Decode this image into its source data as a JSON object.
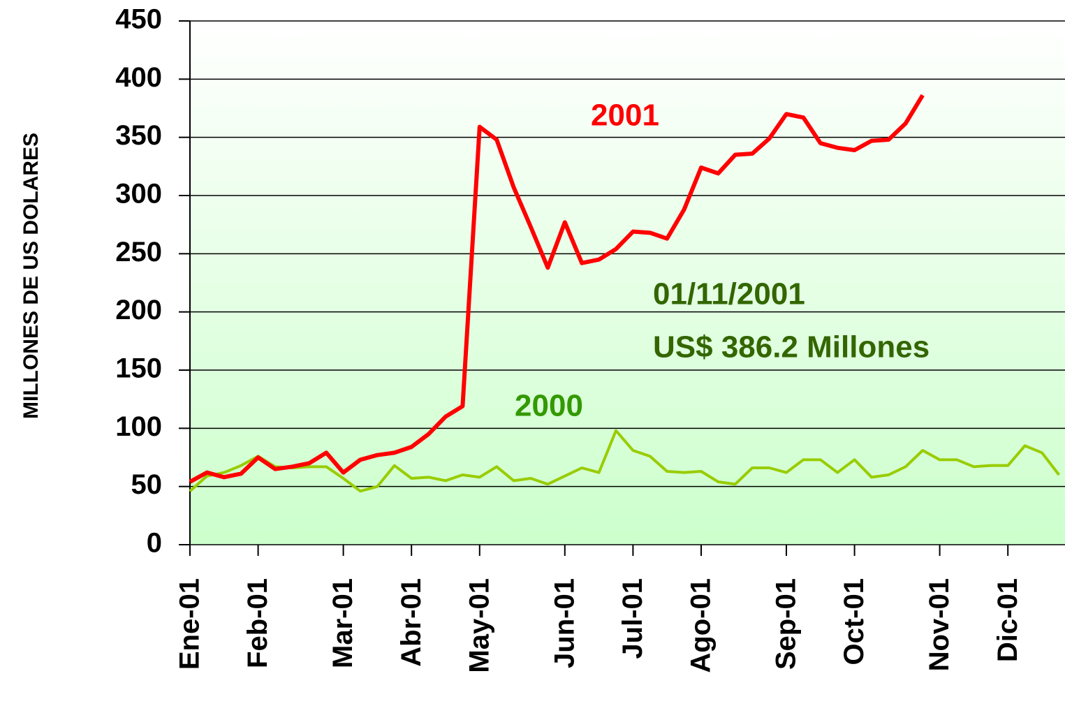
{
  "chart_data": {
    "type": "line",
    "y_label": "MILLONES DE US DOLARES",
    "categories": [
      "Ene-01",
      null,
      null,
      null,
      "Feb-01",
      null,
      null,
      null,
      null,
      "Mar-01",
      null,
      null,
      null,
      "Abr-01",
      null,
      null,
      null,
      "May-01",
      null,
      null,
      null,
      null,
      "Jun-01",
      null,
      null,
      null,
      "Jul-01",
      null,
      null,
      null,
      "Ago-01",
      null,
      null,
      null,
      null,
      "Sep-01",
      null,
      null,
      null,
      "Oct-01",
      null,
      null,
      null,
      null,
      "Nov-01",
      null,
      null,
      null,
      "Dic-01",
      null,
      null,
      null
    ],
    "series": [
      {
        "name": "2001",
        "color": "#ff0000",
        "values": [
          54,
          62,
          58,
          61,
          75,
          65,
          67,
          70,
          79,
          62,
          73,
          77,
          79,
          84,
          95,
          110,
          119,
          359,
          348,
          307,
          273,
          238,
          277,
          242,
          245,
          254,
          269,
          268,
          263,
          288,
          324,
          319,
          335,
          336,
          349,
          370,
          367,
          345,
          341,
          339,
          347,
          348,
          362,
          386.2,
          null,
          null,
          null,
          null,
          null,
          null,
          null,
          null
        ]
      },
      {
        "name": "2000",
        "color": "#99cc00",
        "values": [
          46,
          59,
          62,
          68,
          76,
          67,
          66,
          67,
          67,
          57,
          46,
          50,
          68,
          57,
          58,
          55,
          60,
          58,
          67,
          55,
          57,
          52,
          59,
          66,
          62,
          98,
          81,
          76,
          63,
          62,
          63,
          54,
          52,
          66,
          66,
          62,
          73,
          73,
          62,
          73,
          58,
          60,
          67,
          81,
          73,
          73,
          67,
          68,
          68,
          85,
          79,
          60
        ]
      }
    ],
    "annotations": [
      "01/11/2001",
      "US$ 386.2 Millones"
    ],
    "ylim": [
      0,
      450
    ],
    "yticks": [
      0,
      50,
      100,
      150,
      200,
      250,
      300,
      350,
      400,
      450
    ],
    "grid": true
  }
}
